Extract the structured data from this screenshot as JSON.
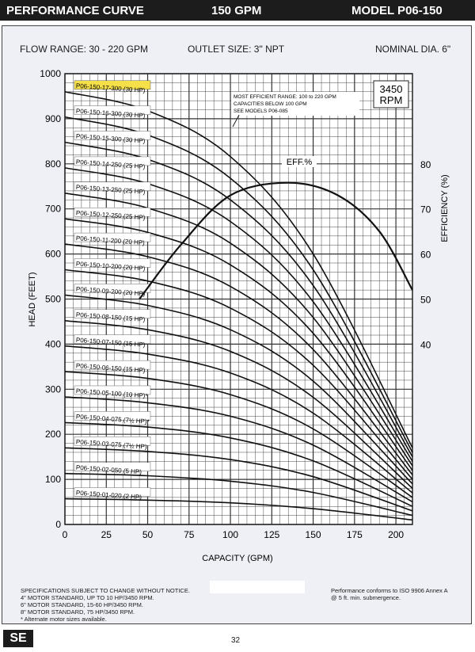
{
  "header": {
    "left": "PERFORMANCE CURVE",
    "center": "150 GPM",
    "right": "MODEL  P06-150"
  },
  "specs": {
    "flow_range": "FLOW RANGE: 30 - 220 GPM",
    "outlet_size": "OUTLET SIZE: 3\" NPT",
    "nominal_dia": "NOMINAL DIA. 6\""
  },
  "annotations": {
    "rpm_line1": "3450",
    "rpm_line2": "RPM",
    "note_line1": "MOST EFFICIENT RANGE: 100 to 220 GPM",
    "note_line2": "CAPACITIES BELOW 100 GPM",
    "note_line3": "SEE MODELS P06-085",
    "eff_label": "EFF.%"
  },
  "footer": {
    "spec_lines": [
      "SPECIFICATIONS SUBJECT TO CHANGE WITHOUT NOTICE.",
      "4\" MOTOR STANDARD, UP TO 10 HP/3450 RPM.",
      "6\" MOTOR STANDARD, 15-60 HP/3450 RPM.",
      "8\" MOTOR STANDARD, 75 HP/3450 RPM.",
      "* Alternate motor sizes available."
    ],
    "iso_line1": "Performance conforms to ISO 9906 Annex A",
    "iso_line2": "@ 5 ft. min. submergence.",
    "logo": "SE",
    "page_number": "32"
  },
  "chart_data": {
    "type": "line",
    "xlabel": "CAPACITY (GPM)",
    "ylabel": "HEAD (FEET)",
    "y2label": "EFFICIENCY (%)",
    "xlim": [
      0,
      210
    ],
    "ylim": [
      0,
      1000
    ],
    "y2lim": [
      0,
      100
    ],
    "x_ticks": [
      0,
      25,
      50,
      75,
      100,
      125,
      150,
      175,
      200
    ],
    "y_ticks": [
      0,
      100,
      200,
      300,
      400,
      500,
      600,
      700,
      800,
      900,
      1000
    ],
    "y2_ticks": [
      40,
      50,
      60,
      70,
      80
    ],
    "grid": true,
    "highlight_color": "#f5e04a",
    "series": [
      {
        "name": "P06-150-01-020 (2 HP)",
        "x": [
          0,
          50,
          100,
          150,
          210
        ],
        "y": [
          57,
          54,
          48,
          35,
          10
        ]
      },
      {
        "name": "P06-150-02-050 (5 HP)",
        "x": [
          0,
          50,
          100,
          150,
          210
        ],
        "y": [
          113,
          108,
          96,
          71,
          20
        ]
      },
      {
        "name": "P06-150-03-075 (7½ HP)",
        "x": [
          0,
          50,
          100,
          150,
          210
        ],
        "y": [
          170,
          162,
          144,
          106,
          30
        ]
      },
      {
        "name": "P06-150-04-075 (7½ HP)*",
        "x": [
          0,
          50,
          100,
          150,
          210
        ],
        "y": [
          226,
          216,
          192,
          141,
          40
        ]
      },
      {
        "name": "P06-150-05-100 (10 HP)*",
        "x": [
          0,
          50,
          100,
          150,
          210
        ],
        "y": [
          283,
          270,
          240,
          176,
          50
        ]
      },
      {
        "name": "P06-150-06-150 (15 HP)",
        "x": [
          0,
          50,
          100,
          150,
          210
        ],
        "y": [
          339,
          324,
          288,
          212,
          60
        ]
      },
      {
        "name": "P06-150-07-150 (15 HP)",
        "x": [
          0,
          50,
          100,
          150,
          210
        ],
        "y": [
          396,
          378,
          336,
          247,
          70
        ]
      },
      {
        "name": "P06-150-08-150 (15 HP)",
        "x": [
          0,
          50,
          100,
          150,
          210
        ],
        "y": [
          452,
          432,
          384,
          282,
          80
        ]
      },
      {
        "name": "P06-150-09-200 (20 HP)",
        "x": [
          0,
          50,
          100,
          150,
          210
        ],
        "y": [
          509,
          486,
          432,
          318,
          90
        ]
      },
      {
        "name": "P06-150-10-200 (20 HP)",
        "x": [
          0,
          50,
          100,
          150,
          210
        ],
        "y": [
          565,
          540,
          480,
          353,
          100
        ]
      },
      {
        "name": "P06-150-11-200 (20 HP)",
        "x": [
          0,
          50,
          100,
          150,
          210
        ],
        "y": [
          622,
          594,
          528,
          388,
          110
        ]
      },
      {
        "name": "P06-150-12-250 (25 HP)",
        "x": [
          0,
          50,
          100,
          150,
          210
        ],
        "y": [
          678,
          648,
          576,
          424,
          120
        ]
      },
      {
        "name": "P06-150-13-250 (25 HP)",
        "x": [
          0,
          50,
          100,
          150,
          210
        ],
        "y": [
          735,
          702,
          624,
          459,
          130
        ]
      },
      {
        "name": "P06-150-14-250 (25 HP)",
        "x": [
          0,
          50,
          100,
          150,
          210
        ],
        "y": [
          791,
          756,
          672,
          494,
          140
        ]
      },
      {
        "name": "P06-150-15-300 (30 HP)",
        "x": [
          0,
          50,
          100,
          150,
          210
        ],
        "y": [
          848,
          810,
          720,
          530,
          150
        ]
      },
      {
        "name": "P06-150-16-300 (30 HP)",
        "x": [
          0,
          50,
          100,
          150,
          210
        ],
        "y": [
          904,
          864,
          768,
          565,
          160
        ]
      },
      {
        "name": "P06-150-17-300 (30 HP)",
        "x": [
          0,
          50,
          100,
          150,
          210
        ],
        "y": [
          960,
          918,
          816,
          600,
          170
        ],
        "highlight": true
      }
    ],
    "efficiency": {
      "name": "EFF.%",
      "x": [
        45,
        70,
        100,
        135,
        165,
        190,
        210
      ],
      "y": [
        50,
        62,
        73,
        75.8,
        73,
        65,
        52
      ]
    }
  }
}
